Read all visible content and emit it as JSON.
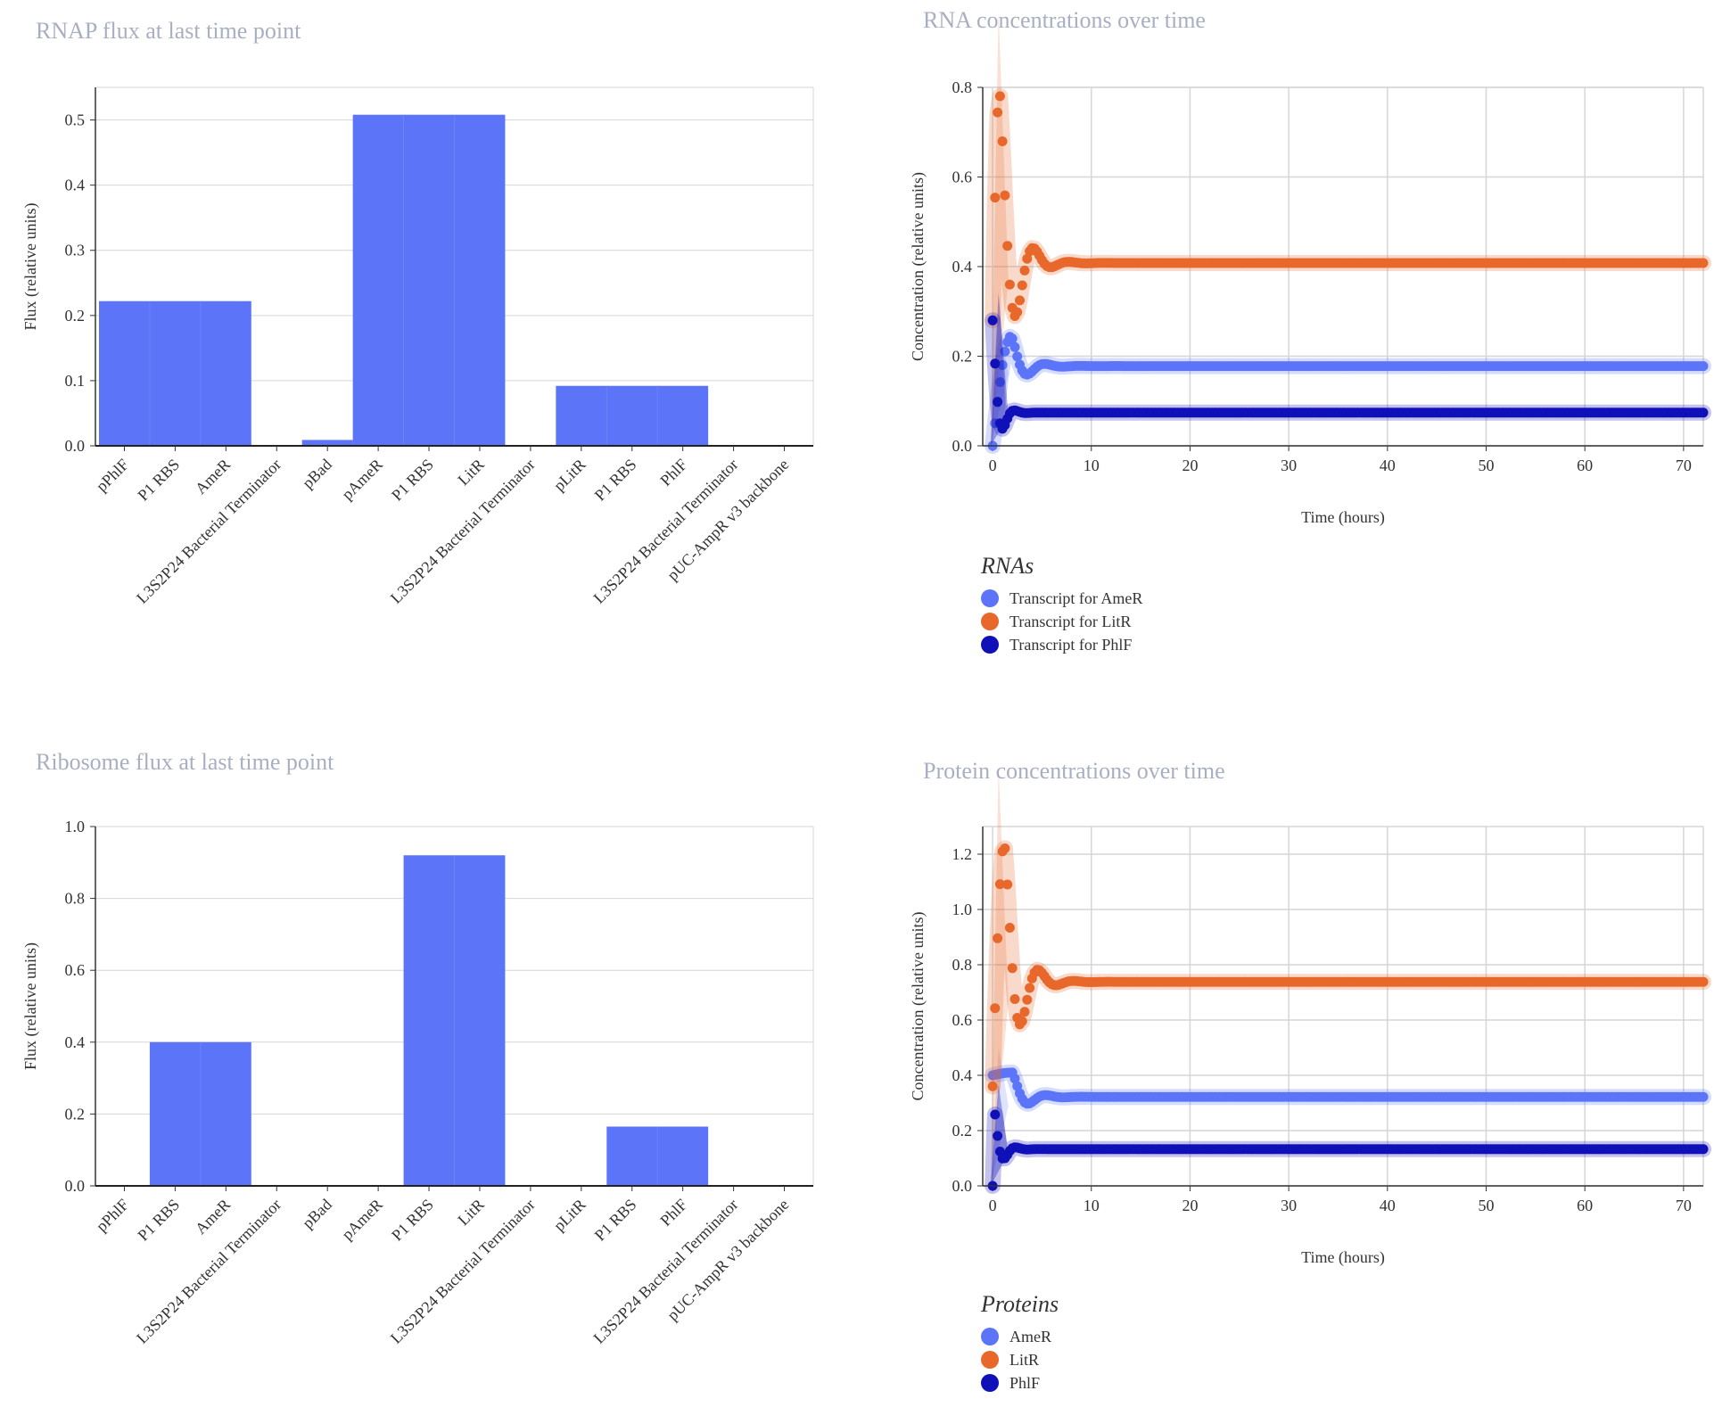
{
  "panels": {
    "rnap": {
      "title": "RNAP flux at last time point"
    },
    "rna": {
      "title": "RNA concentrations over time"
    },
    "ribosome": {
      "title": "Ribosome flux at last time point"
    },
    "protein": {
      "title": "Protein concentrations over time"
    }
  },
  "colors": {
    "bar": "#5b74f8",
    "series_a": "#5b74f8",
    "series_b": "#e8672a",
    "series_c": "#1010b8",
    "grid": "#d6d6d6",
    "title": "#a9afc2"
  },
  "chart_data": [
    {
      "type": "bar",
      "title": "RNAP flux at last time point",
      "xlabel": "",
      "ylabel": "Flux (relative units)",
      "categories": [
        "pPhlF",
        "P1 RBS",
        "AmeR",
        "L3S2P24 Bacterial Terminator",
        "pBad",
        "pAmeR",
        "P1 RBS",
        "LitR",
        "L3S2P24 Bacterial Terminator",
        "pLitR",
        "P1 RBS",
        "PhlF",
        "L3S2P24 Bacterial Terminator",
        "pUC-AmpR v3 backbone"
      ],
      "values": [
        0.222,
        0.222,
        0.222,
        0.0,
        0.009,
        0.508,
        0.508,
        0.508,
        0.0,
        0.092,
        0.092,
        0.092,
        0.0,
        0.0
      ],
      "ylim": [
        0,
        0.55
      ],
      "yticks": [
        0.0,
        0.1,
        0.2,
        0.3,
        0.4,
        0.5
      ],
      "grid": true
    },
    {
      "type": "scatter",
      "title": "RNA concentrations over time",
      "xlabel": "Time (hours)",
      "ylabel": "Concentration (relative units)",
      "xlim": [
        -1,
        72
      ],
      "ylim": [
        0,
        0.8
      ],
      "xticks": [
        0,
        10,
        20,
        30,
        40,
        50,
        60,
        70
      ],
      "yticks": [
        0.0,
        0.2,
        0.4,
        0.6,
        0.8
      ],
      "grid": true,
      "legend_title": "RNAs",
      "legend_position": "bottom-left",
      "series": [
        {
          "name": "Transcript for AmeR",
          "color": "#5b74f8",
          "steady": 0.178,
          "overshoot": 0.245,
          "peak_time": 1.9,
          "damping": 0.75,
          "period": 3.6,
          "start": 0.0,
          "rise": 1.2
        },
        {
          "name": "Transcript for LitR",
          "color": "#e8672a",
          "steady": 0.408,
          "overshoot": 0.795,
          "peak_time": 0.7,
          "damping": 0.7,
          "period": 3.6,
          "start": 0.28,
          "rise": 0.7
        },
        {
          "name": "Transcript for PhlF",
          "color": "#1010b8",
          "steady": 0.074,
          "overshoot": 0.28,
          "peak_time": 0.0,
          "damping": 1.6,
          "period": 2.4,
          "start": 0.0,
          "rise": 0.1
        }
      ]
    },
    {
      "type": "bar",
      "title": "Ribosome flux at last time point",
      "xlabel": "",
      "ylabel": "Flux (relative units)",
      "categories": [
        "pPhlF",
        "P1 RBS",
        "AmeR",
        "L3S2P24 Bacterial Terminator",
        "pBad",
        "pAmeR",
        "P1 RBS",
        "LitR",
        "L3S2P24 Bacterial Terminator",
        "pLitR",
        "P1 RBS",
        "PhlF",
        "L3S2P24 Bacterial Terminator",
        "pUC-AmpR v3 backbone"
      ],
      "values": [
        0.0,
        0.4,
        0.4,
        0.0,
        0.0,
        0.0,
        0.92,
        0.92,
        0.0,
        0.0,
        0.165,
        0.165,
        0.0,
        0.0
      ],
      "ylim": [
        0,
        1.0
      ],
      "yticks": [
        0.0,
        0.2,
        0.4,
        0.6,
        0.8,
        1.0
      ],
      "grid": true
    },
    {
      "type": "scatter",
      "title": "Protein concentrations over time",
      "xlabel": "Time (hours)",
      "ylabel": "Concentration (relative units)",
      "xlim": [
        -1,
        72
      ],
      "ylim": [
        0,
        1.3
      ],
      "xticks": [
        0,
        10,
        20,
        30,
        40,
        50,
        60,
        70
      ],
      "yticks": [
        0.0,
        0.2,
        0.4,
        0.6,
        0.8,
        1.0,
        1.2
      ],
      "grid": true,
      "legend_title": "Proteins",
      "legend_position": "bottom-left",
      "series": [
        {
          "name": "AmeR",
          "color": "#5b74f8",
          "steady": 0.322,
          "overshoot": 0.41,
          "peak_time": 2.0,
          "damping": 0.75,
          "period": 3.6,
          "start": 0.4,
          "rise": 1.2
        },
        {
          "name": "LitR",
          "color": "#e8672a",
          "steady": 0.738,
          "overshoot": 1.24,
          "peak_time": 1.2,
          "damping": 0.7,
          "period": 3.6,
          "start": 0.36,
          "rise": 1.2
        },
        {
          "name": "PhlF",
          "color": "#1010b8",
          "steady": 0.133,
          "overshoot": 0.3,
          "peak_time": 0.1,
          "damping": 1.4,
          "period": 2.4,
          "start": 0.0,
          "rise": 0.1
        }
      ]
    }
  ]
}
